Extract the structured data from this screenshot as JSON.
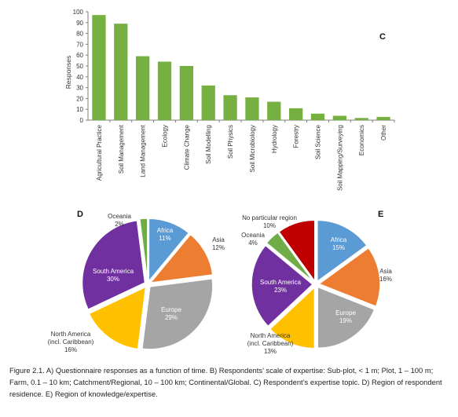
{
  "chart_data": [
    {
      "panel_label": "C",
      "type": "bar",
      "ylabel": "Responses",
      "ylim": [
        0,
        100
      ],
      "yticks": [
        "0",
        "10",
        "20",
        "30",
        "40",
        "50",
        "60",
        "70",
        "80",
        "90",
        "100"
      ],
      "categories": [
        "Agricultural Practice",
        "Soil Management",
        "Land Management",
        "Ecology",
        "Climate Change",
        "Soil Modelling",
        "Soil Physics",
        "Soil Microbiology",
        "Hydrology",
        "Forestry",
        "Soil Science",
        "Soil Mapping/Surveying",
        "Economics",
        "Other"
      ],
      "values": [
        97,
        89,
        59,
        54,
        50,
        32,
        23,
        21,
        17,
        11,
        6,
        4,
        2,
        3
      ],
      "color": "#76B041",
      "grid": false
    },
    {
      "panel_label": "D",
      "type": "pie",
      "slices": [
        {
          "name": "Africa",
          "pct_label": "11%",
          "value": 11,
          "color": "#5B9BD5"
        },
        {
          "name": "Asia",
          "pct_label": "12%",
          "value": 12,
          "color": "#ED7D31"
        },
        {
          "name": "Europe",
          "pct_label": "29%",
          "value": 29,
          "color": "#A5A5A5"
        },
        {
          "name": "North America\n(incl. Caribbean)",
          "pct_label": "16%",
          "value": 16,
          "color": "#FFC000"
        },
        {
          "name": "South America",
          "pct_label": "30%",
          "value": 30,
          "color": "#7030A0"
        },
        {
          "name": "Oceania",
          "pct_label": "2%",
          "value": 2,
          "color": "#70AD47"
        }
      ]
    },
    {
      "panel_label": "E",
      "type": "pie",
      "slices": [
        {
          "name": "Africa",
          "pct_label": "15%",
          "value": 15,
          "color": "#5B9BD5"
        },
        {
          "name": "Asia",
          "pct_label": "16%",
          "value": 16,
          "color": "#ED7D31"
        },
        {
          "name": "Europe",
          "pct_label": "19%",
          "value": 19,
          "color": "#A5A5A5"
        },
        {
          "name": "North America\n(incl. Caribbean)",
          "pct_label": "13%",
          "value": 13,
          "color": "#FFC000"
        },
        {
          "name": "South America",
          "pct_label": "23%",
          "value": 23,
          "color": "#7030A0"
        },
        {
          "name": "Oceania",
          "pct_label": "4%",
          "value": 4,
          "color": "#70AD47"
        },
        {
          "name": "No particular region",
          "pct_label": "10%",
          "value": 10,
          "color": "#C00000"
        }
      ]
    }
  ],
  "caption": "Figure 2.1. A) Questionnaire responses as a function of time. B) Respondents’ scale of expertise: Sub-plot, < 1 m; Plot, 1 – 100 m; Farm, 0.1 – 10 km; Catchment/Regional, 10 – 100 km; Continental/Global. C) Respondent’s expertise topic. D) Region of respondent residence. E) Region of knowledge/expertise."
}
